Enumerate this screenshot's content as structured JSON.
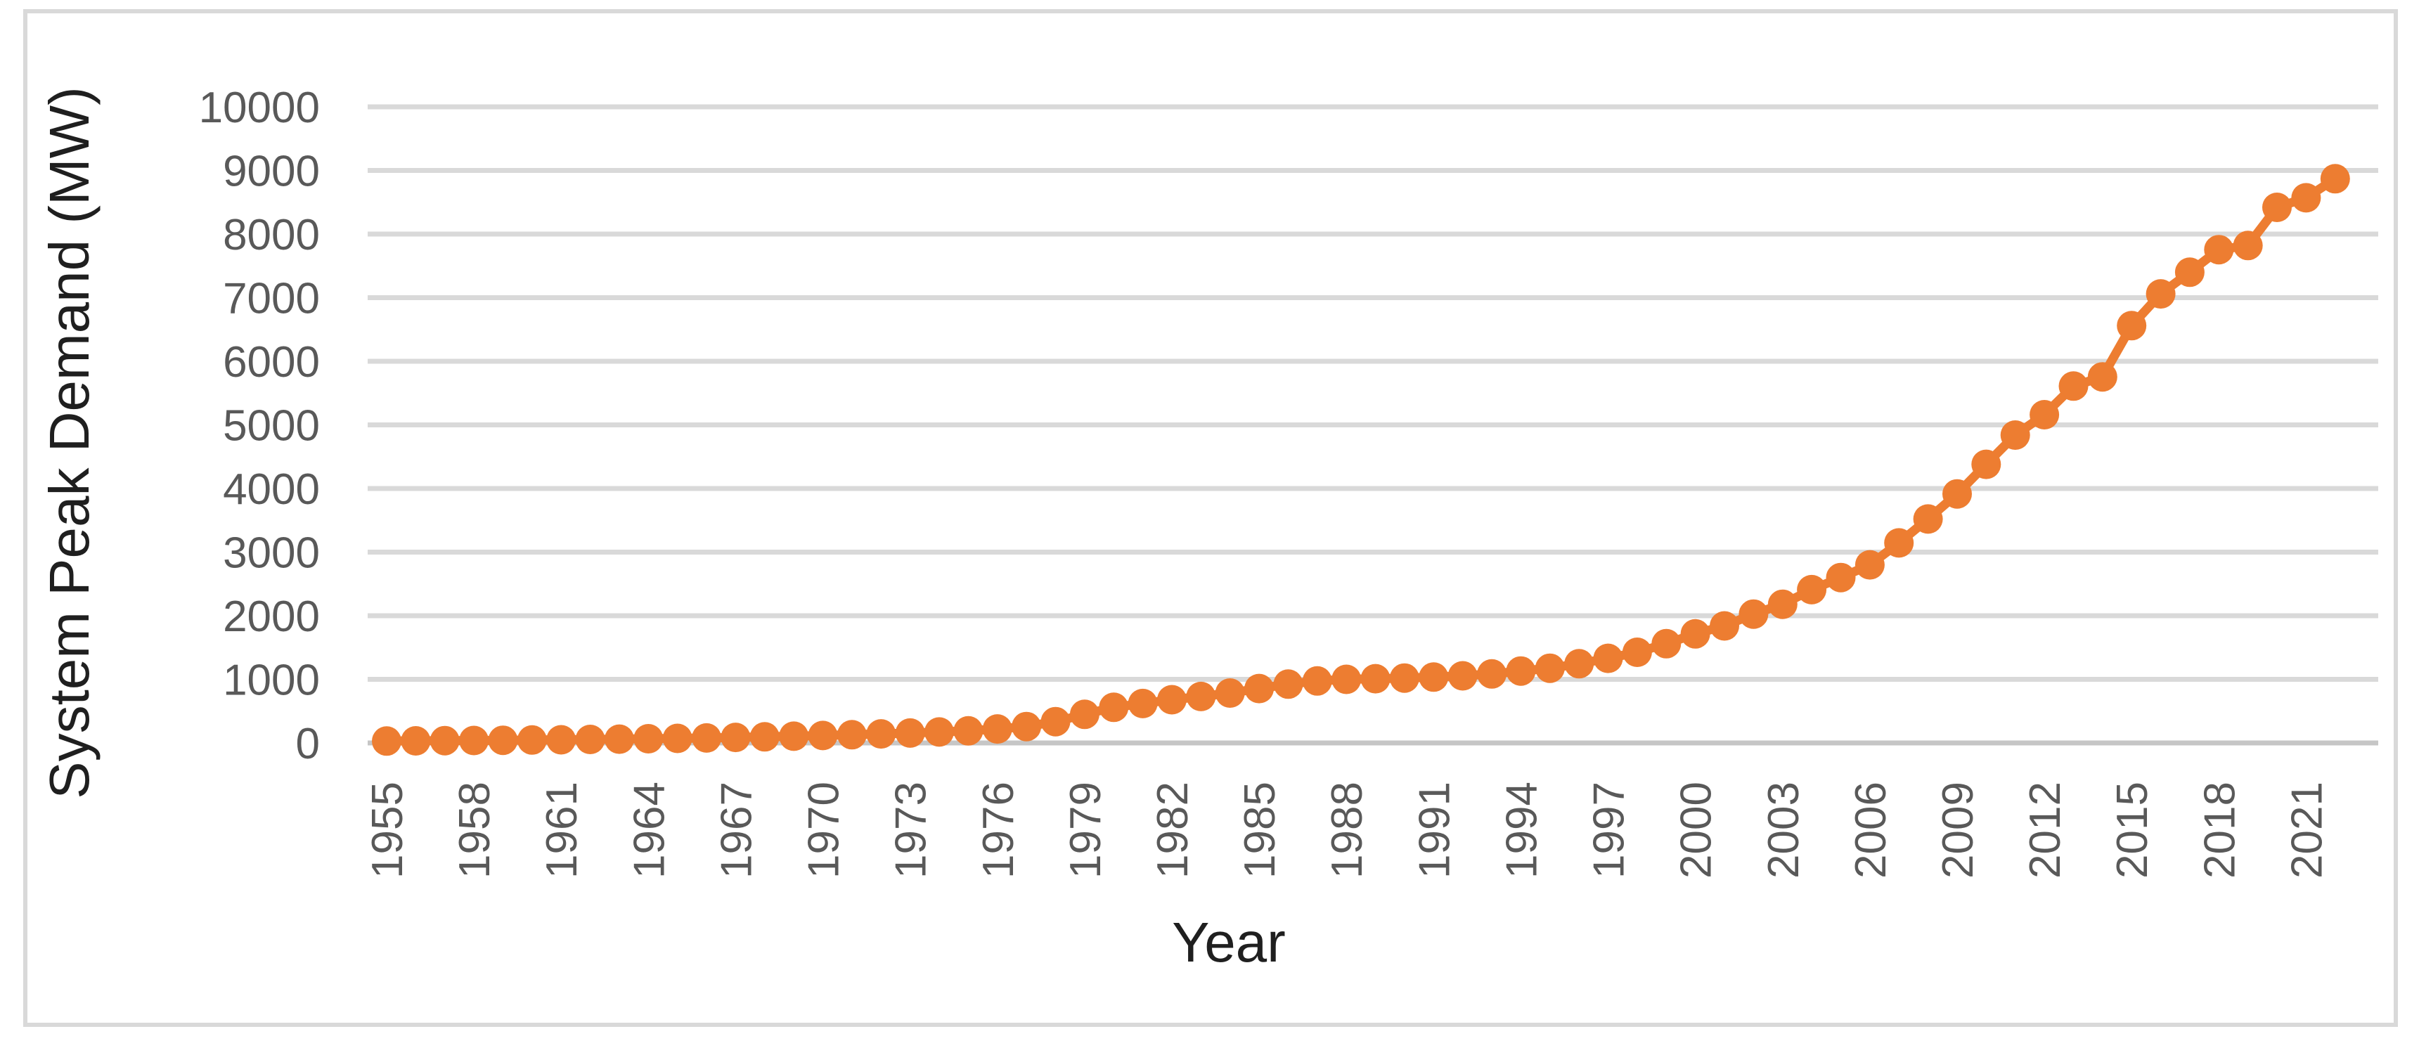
{
  "page": {
    "background_color": "#FFFFFF"
  },
  "chart": {
    "border_color": "#D9D9D9",
    "gridline_color": "#D9D9D9",
    "axis_line_color": "#C6C6C6",
    "tick_label_color": "#595959",
    "axis_title_color": "#1F1F1F",
    "series_color": "#ED7D31",
    "x_axis_title": "Year",
    "y_axis_title": "System Peak Demand (MW)"
  },
  "chart_data": {
    "type": "line",
    "title": "",
    "xlabel": "Year",
    "ylabel": "System Peak Demand (MW)",
    "legend": false,
    "grid": "horizontal",
    "marker": "circle",
    "line_with_markers": true,
    "ylim": [
      0,
      10000
    ],
    "y_ticks": [
      0,
      1000,
      2000,
      3000,
      4000,
      5000,
      6000,
      7000,
      8000,
      9000,
      10000
    ],
    "x_tick_years": [
      1955,
      1958,
      1961,
      1964,
      1967,
      1970,
      1973,
      1976,
      1979,
      1982,
      1985,
      1988,
      1991,
      1994,
      1997,
      2000,
      2003,
      2006,
      2009,
      2012,
      2015,
      2018,
      2021
    ],
    "x": [
      1955,
      1956,
      1957,
      1958,
      1959,
      1960,
      1961,
      1962,
      1963,
      1964,
      1965,
      1966,
      1967,
      1968,
      1969,
      1970,
      1971,
      1972,
      1973,
      1974,
      1975,
      1976,
      1977,
      1978,
      1979,
      1980,
      1981,
      1982,
      1983,
      1984,
      1985,
      1986,
      1987,
      1988,
      1989,
      1990,
      1991,
      1992,
      1993,
      1994,
      1995,
      1996,
      1997,
      1998,
      1999,
      2000,
      2001,
      2002,
      2003,
      2004,
      2005,
      2006,
      2007,
      2008,
      2009,
      2010,
      2011,
      2012,
      2013,
      2014,
      2015,
      2016,
      2017,
      2018,
      2019,
      2020,
      2021,
      2022
    ],
    "series": [
      {
        "name": "System Peak Demand",
        "values": [
          30,
          33,
          36,
          39,
          42,
          46,
          50,
          55,
          60,
          66,
          72,
          79,
          87,
          96,
          106,
          117,
          129,
          142,
          156,
          172,
          190,
          220,
          258,
          335,
          450,
          560,
          620,
          680,
          730,
          785,
          855,
          925,
          975,
          1000,
          1010,
          1020,
          1035,
          1055,
          1085,
          1130,
          1175,
          1245,
          1330,
          1425,
          1560,
          1715,
          1840,
          2025,
          2180,
          2410,
          2600,
          2800,
          3145,
          3520,
          3915,
          4380,
          4840,
          5160,
          5610,
          5755,
          6560,
          7060,
          7400,
          7755,
          7820,
          8420,
          8570,
          8870
        ]
      }
    ]
  }
}
